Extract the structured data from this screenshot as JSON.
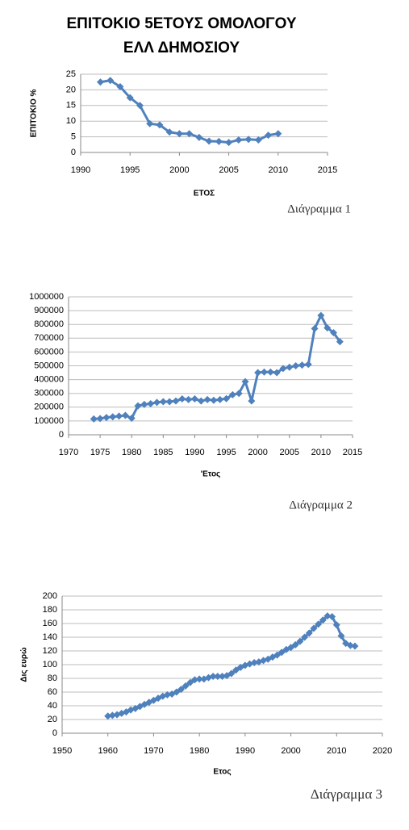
{
  "chart_data": [
    {
      "type": "line",
      "title": [
        "ΕΠΙΤΟΚΙΟ 5ΕΤΟΥΣ ΟΜΟΛΟΓΟΥ",
        "ΕΛΛ ΔΗΜΟΣΙΟΥ"
      ],
      "y_label": "ΕΠΙΤΟΚΙΟ %",
      "x_label": "ΕΤΟΣ",
      "caption": "Διάγραμμα 1",
      "color": "#4f81bd",
      "grid": true,
      "x": [
        1992,
        1993,
        1994,
        1995,
        1996,
        1997,
        1998,
        1999,
        2000,
        2001,
        2002,
        2003,
        2004,
        2005,
        2006,
        2007,
        2008,
        2009,
        2010
      ],
      "values": [
        22.5,
        23,
        21,
        17.5,
        15,
        9.2,
        8.8,
        6.5,
        6,
        6,
        4.8,
        3.6,
        3.5,
        3.2,
        4,
        4.2,
        4,
        5.5,
        6
      ],
      "xlim": [
        1990,
        2015
      ],
      "xticks": [
        1990,
        1995,
        2000,
        2005,
        2010,
        2015
      ],
      "ylim": [
        0,
        25
      ],
      "yticks": [
        0,
        5,
        10,
        15,
        20,
        25
      ]
    },
    {
      "type": "line",
      "x_label": "'Ετος",
      "caption": "Διάγραμμα 2",
      "color": "#4f81bd",
      "grid": true,
      "x": [
        1974,
        1975,
        1976,
        1977,
        1978,
        1979,
        1980,
        1981,
        1982,
        1983,
        1984,
        1985,
        1986,
        1987,
        1988,
        1989,
        1990,
        1991,
        1992,
        1993,
        1994,
        1995,
        1996,
        1997,
        1998,
        1999,
        2000,
        2001,
        2002,
        2003,
        2004,
        2005,
        2006,
        2007,
        2008,
        2009,
        2010,
        2011,
        2012,
        2013
      ],
      "values": [
        115000,
        118000,
        125000,
        130000,
        135000,
        140000,
        120000,
        210000,
        220000,
        225000,
        235000,
        240000,
        240000,
        245000,
        260000,
        255000,
        260000,
        245000,
        255000,
        250000,
        255000,
        262000,
        290000,
        300000,
        385000,
        245000,
        450000,
        455000,
        455000,
        450000,
        480000,
        490000,
        500000,
        505000,
        510000,
        770000,
        865000,
        775000,
        740000,
        675000
      ],
      "xlim": [
        1970,
        2015
      ],
      "xticks": [
        1970,
        1975,
        1980,
        1985,
        1990,
        1995,
        2000,
        2005,
        2010,
        2015
      ],
      "ylim": [
        0,
        1000000
      ],
      "yticks": [
        0,
        100000,
        200000,
        300000,
        400000,
        500000,
        600000,
        700000,
        800000,
        900000,
        1000000
      ]
    },
    {
      "type": "line",
      "y_label": "Δις ευρώ",
      "x_label": "Ετος",
      "caption": "Διάγραμμα 3",
      "color": "#4f81bd",
      "grid": true,
      "x": [
        1960,
        1961,
        1962,
        1963,
        1964,
        1965,
        1966,
        1967,
        1968,
        1969,
        1970,
        1971,
        1972,
        1973,
        1974,
        1975,
        1976,
        1977,
        1978,
        1979,
        1980,
        1981,
        1982,
        1983,
        1984,
        1985,
        1986,
        1987,
        1988,
        1989,
        1990,
        1991,
        1992,
        1993,
        1994,
        1995,
        1996,
        1997,
        1998,
        1999,
        2000,
        2001,
        2002,
        2003,
        2004,
        2005,
        2006,
        2007,
        2008,
        2009,
        2010,
        2011,
        2012,
        2013,
        2014
      ],
      "values": [
        25,
        26,
        27,
        29,
        31,
        34,
        36,
        39,
        42,
        45,
        48,
        51,
        54,
        56,
        57,
        60,
        64,
        69,
        74,
        78,
        79,
        79,
        81,
        83,
        83,
        83,
        84,
        87,
        92,
        96,
        99,
        101,
        103,
        104,
        106,
        108,
        111,
        114,
        118,
        122,
        125,
        129,
        134,
        140,
        146,
        153,
        159,
        165,
        171,
        170,
        158,
        142,
        131,
        128,
        127
      ],
      "xlim": [
        1950,
        2020
      ],
      "xticks": [
        1950,
        1960,
        1970,
        1980,
        1990,
        2000,
        2010,
        2020
      ],
      "ylim": [
        0,
        200
      ],
      "yticks": [
        0,
        20,
        40,
        60,
        80,
        100,
        120,
        140,
        160,
        180,
        200
      ]
    }
  ]
}
